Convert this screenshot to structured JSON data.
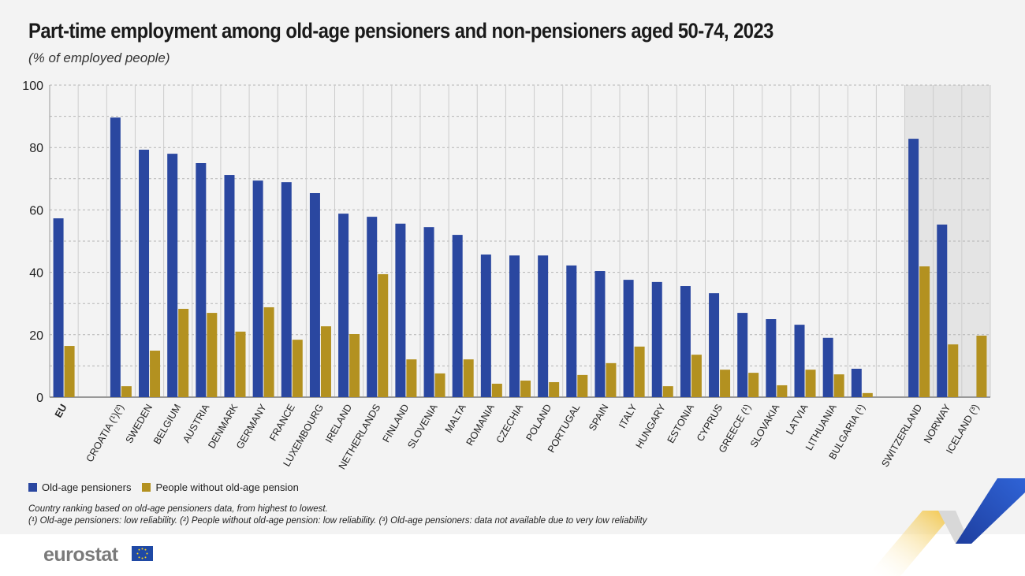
{
  "title": "Part-time employment among old-age pensioners and non-pensioners aged 50-74, 2023",
  "subtitle": "(% of employed people)",
  "colors": {
    "pensioners": "#2a47a0",
    "non_pensioners": "#b39120",
    "shade": "#e4e4e4",
    "background": "#f3f3f3"
  },
  "chart_data": {
    "type": "bar",
    "title": "Part-time employment among old-age pensioners and non-pensioners aged 50-74, 2023",
    "ylabel": "(% of employed people)",
    "ylim": [
      0,
      100
    ],
    "yticks": [
      "0",
      "20",
      "40",
      "60",
      "80",
      "100"
    ],
    "grid": true,
    "legend": "bottom-left",
    "groups": [
      {
        "categories": [
          "EU"
        ]
      },
      {
        "categories": [
          "CROATIA (¹)(²)",
          "SWEDEN",
          "BELGIUM",
          "AUSTRIA",
          "DENMARK",
          "GERMANY",
          "FRANCE",
          "LUXEMBOURG",
          "IRELAND",
          "NETHERLANDS",
          "FINLAND",
          "SLOVENIA",
          "MALTA",
          "ROMANIA",
          "CZECHIA",
          "POLAND",
          "PORTUGAL",
          "SPAIN",
          "ITALY",
          "HUNGARY",
          "ESTONIA",
          "CYPRUS",
          "GREECE (¹)",
          "SLOVAKIA",
          "LATVIA",
          "LITHUANIA",
          "BULGARIA (¹)"
        ]
      },
      {
        "categories": [
          "SWITZERLAND",
          "NORWAY",
          "ICELAND (³)"
        ],
        "shaded": true
      }
    ],
    "categories": [
      "EU",
      "CROATIA (¹)(²)",
      "SWEDEN",
      "BELGIUM",
      "AUSTRIA",
      "DENMARK",
      "GERMANY",
      "FRANCE",
      "LUXEMBOURG",
      "IRELAND",
      "NETHERLANDS",
      "FINLAND",
      "SLOVENIA",
      "MALTA",
      "ROMANIA",
      "CZECHIA",
      "POLAND",
      "PORTUGAL",
      "SPAIN",
      "ITALY",
      "HUNGARY",
      "ESTONIA",
      "CYPRUS",
      "GREECE (¹)",
      "SLOVAKIA",
      "LATVIA",
      "LITHUANIA",
      "BULGARIA (¹)",
      "SWITZERLAND",
      "NORWAY",
      "ICELAND (³)"
    ],
    "series": [
      {
        "name": "Old-age pensioners",
        "values": [
          57.3,
          89.6,
          79.3,
          78.0,
          75.0,
          71.2,
          69.4,
          68.9,
          65.4,
          58.8,
          57.8,
          55.6,
          54.5,
          52.0,
          45.7,
          45.4,
          45.4,
          42.2,
          40.4,
          37.6,
          36.9,
          35.6,
          33.3,
          27.0,
          25.0,
          23.2,
          19.0,
          9.1,
          82.8,
          55.3,
          null
        ]
      },
      {
        "name": "People without old-age pension",
        "values": [
          16.4,
          3.5,
          14.9,
          28.3,
          27.0,
          21.0,
          28.8,
          18.4,
          22.7,
          20.2,
          39.4,
          12.1,
          7.6,
          12.1,
          4.3,
          5.3,
          4.8,
          7.1,
          10.9,
          16.2,
          3.5,
          13.6,
          8.8,
          7.8,
          3.8,
          8.8,
          7.3,
          1.3,
          41.9,
          16.9,
          19.7
        ]
      }
    ]
  },
  "notes": {
    "ranking": "Country ranking based on old-age pensioners data, from highest to lowest.",
    "footnotes": "(¹) Old-age pensioners: low reliability. (²) People without old-age pension: low reliability. (³) Old-age pensioners: data not available due to very low reliability"
  },
  "logo": "eurostat"
}
